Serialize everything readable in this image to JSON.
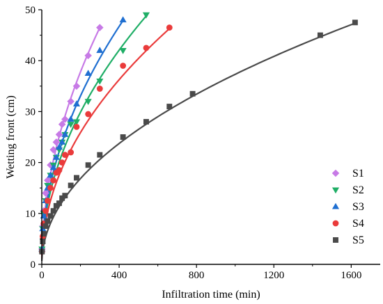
{
  "chart_data": {
    "type": "scatter",
    "xlabel": "Infiltration time (min)",
    "ylabel": "Wetting front (cm)",
    "xlim": [
      0,
      1750
    ],
    "ylim": [
      0,
      50
    ],
    "xticks": [
      0,
      400,
      800,
      1200,
      1600
    ],
    "yticks": [
      0,
      10,
      20,
      30,
      40,
      50
    ],
    "grid": false,
    "legend_position": "right",
    "series": [
      {
        "name": "S1",
        "color": "#c77ae6",
        "marker": "diamond",
        "x": [
          1,
          5,
          10,
          20,
          30,
          45,
          60,
          75,
          90,
          105,
          120,
          150,
          180,
          240,
          300
        ],
        "y": [
          3,
          7.5,
          10.5,
          14,
          16.5,
          19.5,
          22.5,
          24,
          25.5,
          27.5,
          28.5,
          32,
          35,
          41,
          46.5
        ],
        "fit": {
          "a": 2.52,
          "b": 0.511,
          "x_max": 300
        }
      },
      {
        "name": "S2",
        "color": "#1fae66",
        "marker": "triangle-down",
        "x": [
          1,
          5,
          10,
          20,
          30,
          45,
          60,
          75,
          90,
          105,
          120,
          150,
          180,
          240,
          300,
          420,
          540
        ],
        "y": [
          3,
          7,
          10,
          12.5,
          15.5,
          17.5,
          19.5,
          21,
          22.5,
          24,
          25.5,
          27.5,
          28,
          32,
          36,
          42,
          49
        ],
        "fit": {
          "a": 2.18,
          "b": 0.494,
          "x_max": 540
        }
      },
      {
        "name": "S3",
        "color": "#1f6fd1",
        "marker": "triangle-up",
        "x": [
          1,
          5,
          10,
          20,
          30,
          45,
          60,
          75,
          90,
          105,
          120,
          150,
          180,
          240,
          300,
          420
        ],
        "y": [
          3,
          7,
          9.5,
          12.5,
          15,
          17.5,
          19,
          21,
          23,
          24,
          25.5,
          28.5,
          31.5,
          37.5,
          42,
          48
        ],
        "fit": {
          "a": 2.35,
          "b": 0.499,
          "x_max": 420
        }
      },
      {
        "name": "S4",
        "color": "#ea3b3b",
        "marker": "circle",
        "x": [
          1,
          5,
          10,
          20,
          30,
          45,
          60,
          75,
          90,
          105,
          120,
          150,
          180,
          240,
          300,
          420,
          540,
          660
        ],
        "y": [
          2.5,
          5.5,
          8,
          10.5,
          12.5,
          15,
          16.5,
          18,
          18.5,
          20,
          21.5,
          22,
          27,
          29.5,
          34.5,
          39,
          42.5,
          46.5
        ],
        "fit": {
          "a": 1.96,
          "b": 0.487,
          "x_max": 660
        }
      },
      {
        "name": "S5",
        "color": "#4a4a4a",
        "marker": "square",
        "x": [
          1,
          5,
          10,
          20,
          30,
          45,
          60,
          75,
          90,
          105,
          120,
          150,
          180,
          240,
          300,
          420,
          540,
          660,
          780,
          1440,
          1620
        ],
        "y": [
          2.5,
          4.5,
          6,
          7.5,
          8.5,
          9.5,
          10.5,
          11.5,
          12,
          13,
          13.5,
          15.5,
          17,
          19.5,
          21.5,
          25,
          28,
          31,
          33.5,
          45,
          47.5
        ],
        "fit": {
          "a": 1.23,
          "b": 0.494,
          "x_max": 1620
        }
      }
    ]
  }
}
